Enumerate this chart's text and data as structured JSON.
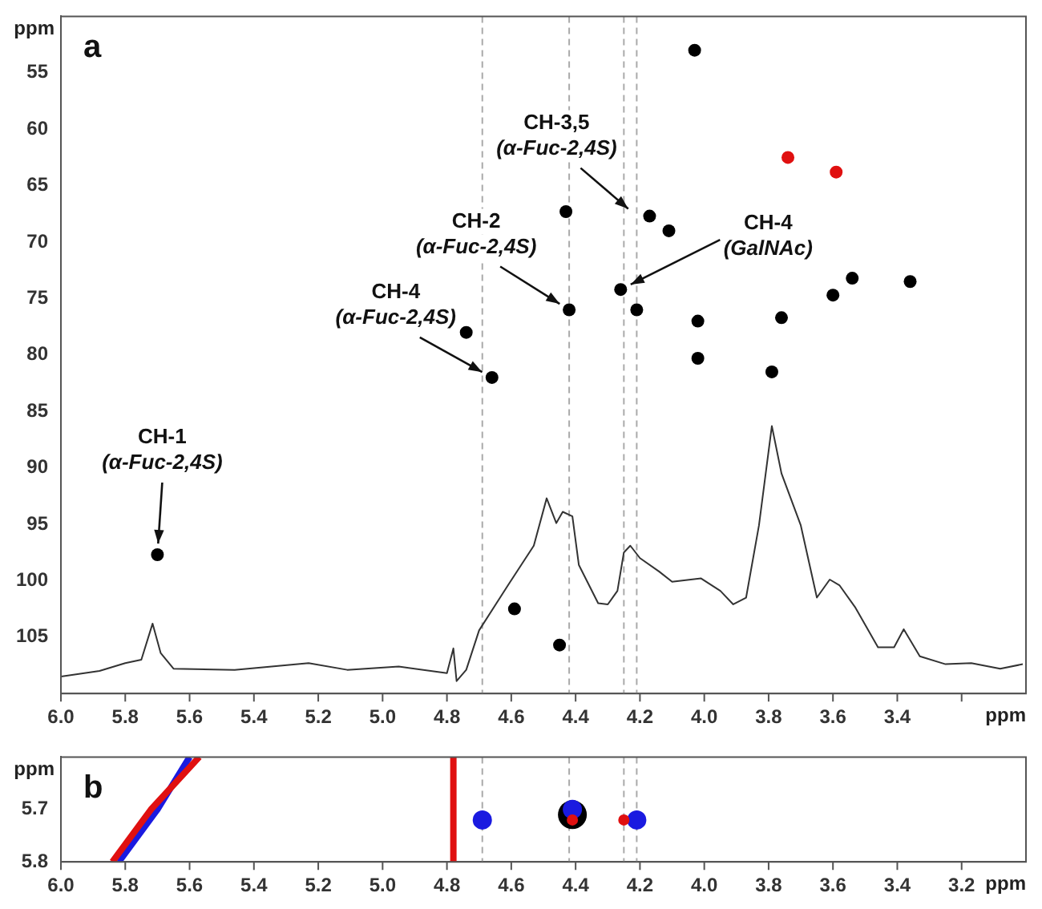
{
  "chart_data": [
    {
      "type": "scatter",
      "xlabel": "ppm",
      "ylabel": "ppm",
      "xlim": [
        6.0,
        3.0
      ],
      "ylim": [
        110,
        50
      ],
      "xticks": [
        {
          "value": 6.0,
          "label": "6.0"
        },
        5.8,
        5.6,
        5.4,
        5.2,
        {
          "value": 5.0,
          "label": "5.0"
        },
        4.8,
        4.6,
        4.4,
        4.2,
        {
          "value": 4.0,
          "label": "4.0"
        },
        3.8,
        3.6,
        3.4,
        {
          "value": 3.2,
          "label": null
        }
      ],
      "yticks": [
        55,
        60,
        65,
        70,
        75,
        80,
        85,
        90,
        95,
        100,
        105
      ],
      "series": [
        {
          "type": "scatter",
          "marker": "circle",
          "color": "#000000",
          "x": [
            4.03,
            4.17,
            4.43,
            4.11,
            4.42,
            4.26,
            4.21,
            4.02,
            4.66,
            4.02,
            3.76,
            3.79,
            3.6,
            3.54,
            3.36,
            4.74,
            5.7,
            4.59,
            4.45
          ],
          "values": [
            53,
            67.7,
            67.3,
            69,
            76,
            74.2,
            76,
            77,
            82,
            80.3,
            76.7,
            81.5,
            74.7,
            73.2,
            73.5,
            78,
            97.7,
            102.5,
            105.7
          ]
        },
        {
          "type": "scatter",
          "marker": "circle",
          "color": "#e01010",
          "x": [
            3.74,
            3.59
          ],
          "values": [
            62.5,
            63.8
          ]
        },
        {
          "type": "line",
          "color": "#333333",
          "x": [
            6.0,
            5.88,
            5.8,
            5.75,
            5.715,
            5.69,
            5.65,
            5.46,
            5.23,
            5.11,
            4.95,
            4.8,
            4.78,
            4.77,
            4.74,
            4.7,
            4.61,
            4.53,
            4.49,
            4.46,
            4.44,
            4.41,
            4.39,
            4.33,
            4.3,
            4.27,
            4.25,
            4.23,
            4.2,
            4.14,
            4.1,
            4.01,
            3.95,
            3.91,
            3.87,
            3.83,
            3.79,
            3.76,
            3.7,
            3.65,
            3.61,
            3.58,
            3.53,
            3.46,
            3.41,
            3.38,
            3.33,
            3.25,
            3.17,
            3.08,
            3.01
          ],
          "values": [
            108.5,
            108.0,
            107.3,
            107.0,
            103.8,
            106.4,
            107.8,
            107.9,
            107.3,
            107.9,
            107.6,
            108.2,
            106.0,
            108.9,
            107.9,
            104.4,
            100.4,
            96.9,
            92.7,
            94.9,
            93.9,
            94.3,
            98.6,
            102.0,
            102.1,
            100.9,
            97.5,
            96.9,
            98.0,
            99.2,
            100.1,
            99.8,
            100.9,
            102.1,
            101.5,
            95.1,
            86.3,
            90.5,
            95.1,
            101.5,
            99.9,
            100.4,
            102.4,
            105.9,
            105.9,
            104.3,
            106.7,
            107.4,
            107.3,
            107.8,
            107.4
          ]
        }
      ],
      "ref_lines": [
        {
          "axis": "x",
          "value": 4.69,
          "color": "#aaaaaa",
          "line_style": "dashed"
        },
        {
          "axis": "x",
          "value": 4.42,
          "color": "#aaaaaa",
          "line_style": "dashed"
        },
        {
          "axis": "x",
          "value": 4.25,
          "color": "#aaaaaa",
          "line_style": "dashed"
        },
        {
          "axis": "x",
          "value": 4.21,
          "color": "#aaaaaa",
          "line_style": "dashed"
        }
      ],
      "annotations": [
        "a",
        {
          "text": "CH-1\n(α-Fuc-2,4S)",
          "x": 5.7,
          "y": 97.7
        },
        {
          "text": "CH-4\n(α-Fuc-2,4S)",
          "x": 4.66,
          "y": 82
        },
        {
          "text": "CH-2\n(α-Fuc-2,4S)",
          "x": 4.42,
          "y": 76
        },
        {
          "text": "CH-3,5\n(α-Fuc-2,4S)",
          "x": 4.21,
          "y": 67.7
        },
        {
          "text": "CH-4\n(GalNAc)",
          "x": 4.26,
          "y": 74.2
        }
      ]
    },
    {
      "type": "scatter",
      "xlabel": "ppm",
      "ylabel": "ppm",
      "xlim": [
        6.0,
        3.0
      ],
      "ylim": [
        5.8,
        5.6
      ],
      "xticks": [
        {
          "value": 6.0,
          "label": "6.0"
        },
        5.8,
        5.6,
        5.4,
        5.2,
        {
          "value": 5.0,
          "label": "5.0"
        },
        4.8,
        4.6,
        4.4,
        4.2,
        {
          "value": 4.0,
          "label": "4.0"
        },
        3.8,
        3.6,
        3.4,
        3.2
      ],
      "yticks": [
        5.7,
        5.8
      ],
      "series": [
        {
          "type": "scatter",
          "marker": "circle",
          "color": "#1a1ae0",
          "x": [
            4.69,
            4.41,
            4.21
          ],
          "values": [
            5.72,
            5.7,
            5.72
          ]
        },
        {
          "type": "scatter",
          "marker": "circle",
          "color": "#000000",
          "x": [
            4.41
          ],
          "values": [
            5.71
          ]
        },
        {
          "type": "scatter",
          "marker": "circle",
          "color": "#e01010",
          "x": [
            4.41,
            4.25
          ],
          "values": [
            5.72,
            5.72
          ]
        },
        {
          "type": "line",
          "color": "#e01010",
          "x": [
            4.78,
            4.78
          ],
          "values": [
            5.8,
            5.6
          ]
        },
        {
          "type": "line",
          "color": "#e01010",
          "x": [
            5.84,
            5.72,
            5.57
          ],
          "values": [
            5.8,
            5.7,
            5.6
          ]
        },
        {
          "type": "line",
          "color": "#1a1ae0",
          "x": [
            5.82,
            5.7,
            5.6
          ],
          "values": [
            5.8,
            5.7,
            5.6
          ]
        }
      ],
      "ref_lines": [
        {
          "axis": "x",
          "value": 4.69,
          "color": "#aaaaaa",
          "line_style": "dashed"
        },
        {
          "axis": "x",
          "value": 4.42,
          "color": "#aaaaaa",
          "line_style": "dashed"
        },
        {
          "axis": "x",
          "value": 4.25,
          "color": "#aaaaaa",
          "line_style": "dashed"
        },
        {
          "axis": "x",
          "value": 4.21,
          "color": "#aaaaaa",
          "line_style": "dashed"
        }
      ],
      "annotations": [
        "b"
      ]
    }
  ]
}
